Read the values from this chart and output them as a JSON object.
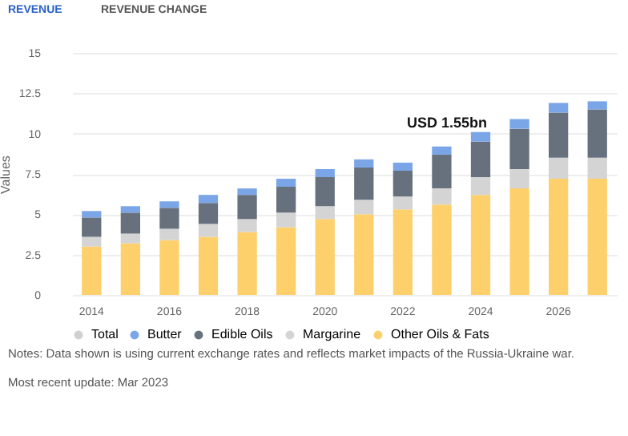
{
  "chart_data": {
    "type": "bar",
    "stacked": true,
    "ylabel": "Values",
    "categories": [
      "2014",
      null,
      "2016",
      null,
      "2018",
      null,
      "2020",
      null,
      "2022",
      null,
      "2024",
      null,
      "2026",
      null
    ],
    "series": [
      {
        "name": "Other Oils & Fats",
        "color": "#fdd06b",
        "values": [
          3.0,
          3.2,
          3.4,
          3.6,
          3.9,
          4.2,
          4.7,
          5.0,
          5.3,
          5.6,
          6.2,
          6.6,
          7.2,
          7.2
        ]
      },
      {
        "name": "Margarine",
        "color": "#d4d4d4",
        "values": [
          0.6,
          0.6,
          0.7,
          0.8,
          0.8,
          0.9,
          0.8,
          0.9,
          0.8,
          1.0,
          1.1,
          1.2,
          1.3,
          1.3
        ]
      },
      {
        "name": "Edible Oils",
        "color": "#66717d",
        "values": [
          1.2,
          1.3,
          1.3,
          1.3,
          1.5,
          1.6,
          1.8,
          2.0,
          1.6,
          2.1,
          2.2,
          2.5,
          2.8,
          3.0
        ]
      },
      {
        "name": "Butter",
        "color": "#7aa6e8",
        "values": [
          0.4,
          0.4,
          0.4,
          0.5,
          0.4,
          0.5,
          0.5,
          0.5,
          0.5,
          0.5,
          0.6,
          0.6,
          0.6,
          0.5
        ]
      },
      {
        "name": "Total",
        "color": "#d0d0d0",
        "values": [
          null,
          null,
          null,
          null,
          null,
          null,
          null,
          null,
          null,
          null,
          null,
          null,
          null,
          null
        ]
      }
    ],
    "ylim": [
      0,
      15
    ],
    "yticks": [
      0,
      2.5,
      5,
      7.5,
      10,
      12.5,
      15
    ],
    "grid": "y",
    "legend": "bottom",
    "annotations": [
      {
        "text": "USD 1.55bn",
        "x": "2024",
        "y": 10.1
      },
      "REVENUE",
      "REVENUE CHANGE",
      "Notes: Data shown is using current exchange rates and reflects market impacts of the Russia-Ukraine war.",
      "Most recent update: Mar 2023"
    ]
  }
}
